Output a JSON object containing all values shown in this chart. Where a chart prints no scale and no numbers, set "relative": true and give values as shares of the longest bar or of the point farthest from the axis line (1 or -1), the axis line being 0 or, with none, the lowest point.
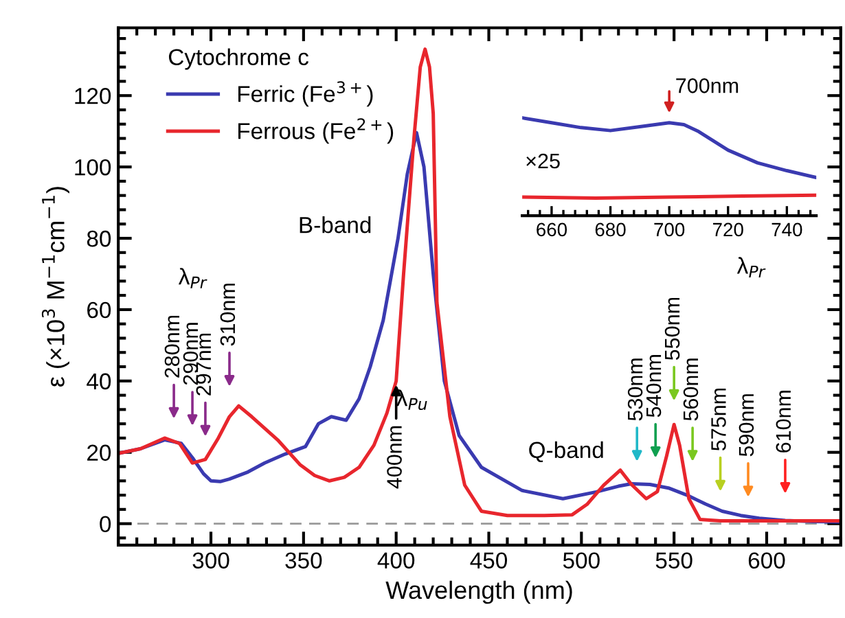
{
  "chart_data": [
    {
      "type": "line",
      "xlabel": "Wavelength (nm)",
      "ylabel": "ε (×10$^{3}$ M$^{−1}$cm$^{−1}$)",
      "legend_title": "Cytochrome c",
      "legend": "top left",
      "grid": false,
      "line_style": "solid",
      "xlim": [
        250,
        640
      ],
      "xticks": [
        300,
        350,
        400,
        450,
        500,
        550,
        600
      ],
      "ylim": [
        -6,
        139
      ],
      "yticks": [
        0,
        20,
        40,
        60,
        80,
        100,
        120
      ],
      "ref_lines": [
        {
          "axis": "y",
          "value": 0,
          "color": "#999999",
          "line_style": "dashed"
        }
      ],
      "series": [
        {
          "name": "Ferric (Fe$^{3+}$)",
          "color": "#3a3ab0",
          "x": [
            250,
            262,
            275,
            284,
            290,
            296,
            300,
            305,
            310,
            320,
            329,
            340,
            351,
            358,
            365,
            373,
            380,
            386,
            393,
            401,
            406,
            411,
            415,
            420,
            426,
            434,
            446,
            468,
            490,
            508,
            520,
            527,
            537,
            547,
            557,
            567,
            576,
            586,
            596,
            610,
            625,
            640
          ],
          "values": [
            19.7,
            21,
            23.5,
            22.5,
            18.5,
            14,
            12,
            11.8,
            12.5,
            14.5,
            17,
            19.5,
            21.6,
            28,
            30,
            29,
            35,
            44,
            57,
            80,
            98,
            109.6,
            100,
            70,
            40,
            24.7,
            15.8,
            9.3,
            7,
            8.9,
            10.5,
            11.2,
            11,
            10,
            8,
            5.5,
            3.5,
            2.3,
            1.5,
            0.9,
            0.6,
            0.5
          ]
        },
        {
          "name": "Ferrous (Fe$^{2+}$)",
          "color": "#e8262d",
          "x": [
            250,
            262,
            275,
            283,
            290,
            297,
            304,
            310,
            315,
            322,
            336,
            348,
            356,
            364,
            372,
            380,
            388,
            395,
            400,
            404,
            409.6,
            413,
            415.6,
            418,
            420,
            422,
            429,
            437,
            446,
            460,
            480,
            495,
            503,
            512,
            521,
            527,
            535,
            541,
            546,
            550,
            553,
            558,
            564,
            575,
            600,
            640
          ],
          "values": [
            19.7,
            21,
            24,
            22.5,
            17,
            18,
            24,
            30,
            33,
            30,
            23.5,
            16.6,
            13.5,
            12,
            13,
            15.8,
            22,
            31,
            40,
            70,
            108,
            128,
            133,
            128,
            115,
            62,
            30,
            10.8,
            3.5,
            2.3,
            2.3,
            2.5,
            5.4,
            10.8,
            15,
            11,
            7,
            9,
            19,
            27.8,
            22,
            7,
            1.2,
            0.8,
            0.8,
            0.8
          ]
        }
      ],
      "annotations": [
        "B-band",
        "Q-band",
        "λ$_{Pr}$",
        "λ$_{Pr}$",
        "λ$_{Pu}$",
        {
          "text": "280nm",
          "x": 280,
          "y": 24
        },
        {
          "text": "290nm",
          "x": 290,
          "y": 22
        },
        {
          "text": "297nm",
          "x": 297,
          "y": 19
        },
        {
          "text": "310nm",
          "x": 310,
          "y": 33
        },
        {
          "text": "400nm",
          "x": 400,
          "y": 40
        },
        {
          "text": "530nm",
          "x": 530,
          "y": 12
        },
        {
          "text": "540nm",
          "x": 540,
          "y": 13
        },
        {
          "text": "550nm",
          "x": 550,
          "y": 29
        },
        {
          "text": "560nm",
          "x": 560,
          "y": 12
        },
        {
          "text": "575nm",
          "x": 575,
          "y": 3.6
        },
        {
          "text": "590nm",
          "x": 590,
          "y": 2
        },
        {
          "text": "610nm",
          "x": 610,
          "y": 3
        }
      ]
    },
    {
      "type": "line",
      "relative": true,
      "tick_labels": "x",
      "grid": false,
      "xlim": [
        650,
        750
      ],
      "xticks": [
        660,
        680,
        700,
        720,
        740
      ],
      "series": [
        {
          "color": "#3a3ab0",
          "x": [
            650,
            660,
            670,
            680,
            690,
            700,
            705,
            710,
            720,
            730,
            740,
            750
          ],
          "values": [
            1.0,
            0.95,
            0.9,
            0.87,
            0.91,
            0.95,
            0.93,
            0.86,
            0.67,
            0.54,
            0.46,
            0.39
          ]
        },
        {
          "color": "#e8262d",
          "x": [
            650,
            675,
            700,
            725,
            750
          ],
          "values": [
            0.19,
            0.18,
            0.19,
            0.2,
            0.21
          ]
        }
      ],
      "annotations": [
        "×25",
        {
          "text": "700nm",
          "x": 700,
          "y": 0.95
        }
      ]
    }
  ]
}
